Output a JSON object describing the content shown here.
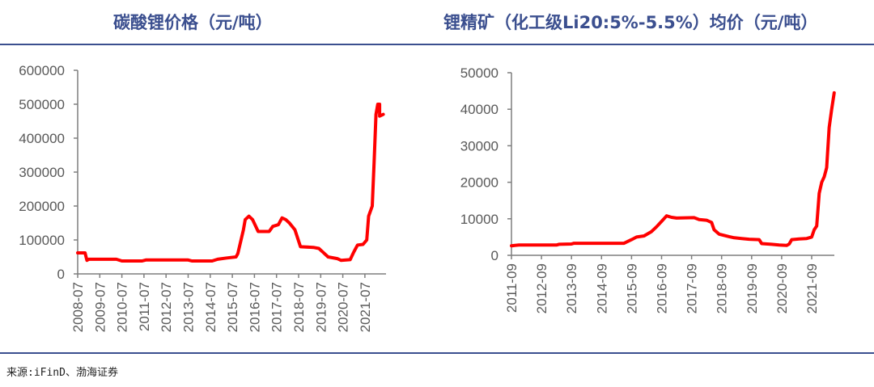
{
  "source": "来源:iFinD、渤海证券",
  "colors": {
    "title": "#3b4f8f",
    "line": "#ff0000",
    "axis": "#7f7f7f",
    "tick_text": "#595959"
  },
  "chart_data": [
    {
      "type": "line",
      "title": "碳酸锂价格（元/吨）",
      "xlabel": "",
      "ylabel": "",
      "ylim": [
        0,
        600000
      ],
      "yticks": [
        "0",
        "100000",
        "200000",
        "300000",
        "400000",
        "500000",
        "600000"
      ],
      "xticks": [
        "2008-07",
        "2009-07",
        "2010-07",
        "2011-07",
        "2012-07",
        "2013-07",
        "2014-07",
        "2015-07",
        "2016-07",
        "2017-07",
        "2018-07",
        "2019-07",
        "2020-07",
        "2021-07"
      ],
      "grid": false,
      "series": [
        {
          "color": "#ff0000",
          "x": [
            "2008-07",
            "2008-11",
            "2008-12",
            "2009-01",
            "2010-04",
            "2010-07",
            "2011-06",
            "2011-08",
            "2013-07",
            "2013-09",
            "2014-08",
            "2014-11",
            "2015-04",
            "2015-09",
            "2015-10",
            "2016-01",
            "2016-02",
            "2016-04",
            "2016-06",
            "2016-09",
            "2017-03",
            "2017-05",
            "2017-08",
            "2017-10",
            "2017-12",
            "2018-02",
            "2018-05",
            "2018-08",
            "2019-03",
            "2019-06",
            "2019-08",
            "2019-11",
            "2020-04",
            "2020-06",
            "2020-11",
            "2021-01",
            "2021-03",
            "2021-06",
            "2021-08",
            "2021-09",
            "2021-11",
            "2021-12",
            "2022-01",
            "2022-02",
            "2022-03",
            "2022-03",
            "2022-05"
          ],
          "values": [
            62000,
            62000,
            40000,
            43000,
            43000,
            38000,
            38000,
            41000,
            41000,
            38000,
            38000,
            43000,
            47000,
            50000,
            60000,
            130000,
            160000,
            170000,
            160000,
            125000,
            125000,
            140000,
            145000,
            165000,
            160000,
            150000,
            130000,
            80000,
            78000,
            75000,
            65000,
            50000,
            45000,
            40000,
            42000,
            65000,
            85000,
            87000,
            100000,
            170000,
            200000,
            330000,
            470000,
            500000,
            500000,
            465000,
            470000
          ]
        }
      ]
    },
    {
      "type": "line",
      "title": "锂精矿（化工级Li20:5%-5.5%）均价（元/吨）",
      "xlabel": "",
      "ylabel": "",
      "ylim": [
        0,
        50000
      ],
      "yticks": [
        "0",
        "10000",
        "20000",
        "30000",
        "40000",
        "50000"
      ],
      "xticks": [
        "2011-09",
        "2012-09",
        "2013-09",
        "2014-09",
        "2015-09",
        "2016-09",
        "2017-09",
        "2018-09",
        "2019-09",
        "2020-09",
        "2021-09"
      ],
      "grid": false,
      "series": [
        {
          "color": "#ff0000",
          "x": [
            "2011-09",
            "2011-12",
            "2013-03",
            "2013-04",
            "2013-09",
            "2013-10",
            "2015-06",
            "2015-09",
            "2015-11",
            "2016-02",
            "2016-05",
            "2016-07",
            "2016-09",
            "2016-11",
            "2017-01",
            "2017-03",
            "2017-10",
            "2017-12",
            "2018-03",
            "2018-05",
            "2018-06",
            "2018-08",
            "2018-12",
            "2019-02",
            "2019-05",
            "2019-08",
            "2019-12",
            "2020-01",
            "2020-05",
            "2020-08",
            "2020-11",
            "2020-12",
            "2021-01",
            "2021-04",
            "2021-07",
            "2021-09",
            "2021-10",
            "2021-11",
            "2021-12",
            "2022-01",
            "2022-02",
            "2022-03",
            "2022-04",
            "2022-05",
            "2022-06"
          ],
          "values": [
            2600,
            2800,
            2800,
            3000,
            3100,
            3300,
            3300,
            4300,
            5000,
            5300,
            6500,
            7800,
            9300,
            10800,
            10400,
            10200,
            10300,
            9800,
            9600,
            9000,
            7000,
            5800,
            5100,
            4800,
            4600,
            4400,
            4300,
            3200,
            3000,
            2800,
            2700,
            3100,
            4300,
            4500,
            4600,
            5000,
            7000,
            8000,
            17000,
            20000,
            21500,
            24000,
            35000,
            40000,
            44500
          ]
        }
      ]
    }
  ]
}
